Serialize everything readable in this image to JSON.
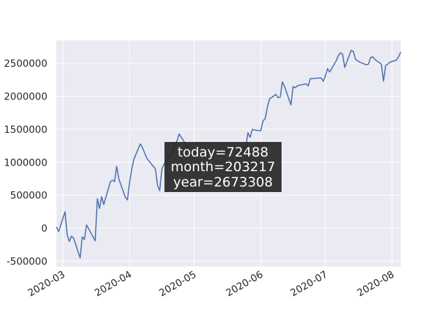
{
  "chart_data": {
    "type": "line",
    "title": "",
    "xlabel": "",
    "ylabel": "",
    "x_start": "2020-02-27",
    "x_range": [
      "2020-02-27",
      "2020-08-05"
    ],
    "ylim": [
      -580000,
      2850000
    ],
    "grid": true,
    "x_ticks": [
      "2020-03",
      "2020-04",
      "2020-05",
      "2020-06",
      "2020-07",
      "2020-08"
    ],
    "y_ticks": [
      -500000,
      0,
      500000,
      1000000,
      1500000,
      2000000,
      2500000
    ],
    "series": [
      {
        "color": "#4c72b0",
        "x": [
          "2020-02-27",
          "2020-02-28",
          "2020-03-02",
          "2020-03-03",
          "2020-03-04",
          "2020-03-05",
          "2020-03-06",
          "2020-03-09",
          "2020-03-10",
          "2020-03-11",
          "2020-03-12",
          "2020-03-16",
          "2020-03-17",
          "2020-03-18",
          "2020-03-19",
          "2020-03-20",
          "2020-03-23",
          "2020-03-24",
          "2020-03-25",
          "2020-03-26",
          "2020-03-27",
          "2020-03-30",
          "2020-03-31",
          "2020-04-01",
          "2020-04-02",
          "2020-04-03",
          "2020-04-06",
          "2020-04-07",
          "2020-04-08",
          "2020-04-09",
          "2020-04-10",
          "2020-04-13",
          "2020-04-14",
          "2020-04-15",
          "2020-04-16",
          "2020-04-17",
          "2020-04-20",
          "2020-04-21",
          "2020-04-22",
          "2020-04-23",
          "2020-04-24",
          "2020-04-27",
          "2020-04-28",
          "2020-04-29",
          "2020-04-30",
          "2020-05-25",
          "2020-05-26",
          "2020-05-27",
          "2020-05-28",
          "2020-05-29",
          "2020-06-01",
          "2020-06-02",
          "2020-06-03",
          "2020-06-04",
          "2020-06-05",
          "2020-06-08",
          "2020-06-09",
          "2020-06-10",
          "2020-06-11",
          "2020-06-12",
          "2020-06-15",
          "2020-06-16",
          "2020-06-17",
          "2020-06-18",
          "2020-06-19",
          "2020-06-22",
          "2020-06-23",
          "2020-06-24",
          "2020-06-29",
          "2020-06-30",
          "2020-07-01",
          "2020-07-02",
          "2020-07-03",
          "2020-07-06",
          "2020-07-07",
          "2020-07-08",
          "2020-07-09",
          "2020-07-10",
          "2020-07-13",
          "2020-07-14",
          "2020-07-15",
          "2020-07-16",
          "2020-07-17",
          "2020-07-20",
          "2020-07-21",
          "2020-07-22",
          "2020-07-23",
          "2020-07-24",
          "2020-07-27",
          "2020-07-28",
          "2020-07-29",
          "2020-07-30",
          "2020-07-31",
          "2020-08-03",
          "2020-08-04",
          "2020-08-05"
        ],
        "values": [
          20000,
          -50000,
          250000,
          -100000,
          -200000,
          -120000,
          -150000,
          -450000,
          -130000,
          -170000,
          50000,
          -190000,
          450000,
          300000,
          480000,
          360000,
          700000,
          730000,
          710000,
          940000,
          750000,
          470000,
          430000,
          700000,
          900000,
          1050000,
          1280000,
          1220000,
          1140000,
          1060000,
          1020000,
          900000,
          650000,
          570000,
          900000,
          970000,
          1120000,
          1150000,
          1280000,
          1320000,
          1430000,
          1280000,
          1200000,
          1150000,
          1100000,
          1230000,
          1450000,
          1380000,
          1500000,
          1490000,
          1480000,
          1630000,
          1660000,
          1830000,
          1960000,
          2030000,
          1980000,
          1990000,
          2220000,
          2150000,
          1870000,
          2150000,
          2130000,
          2160000,
          2170000,
          2190000,
          2160000,
          2270000,
          2280000,
          2230000,
          2310000,
          2420000,
          2370000,
          2540000,
          2620000,
          2660000,
          2640000,
          2440000,
          2700000,
          2680000,
          2560000,
          2540000,
          2520000,
          2480000,
          2490000,
          2590000,
          2600000,
          2560000,
          2490000,
          2230000,
          2470000,
          2490000,
          2520000,
          2550000,
          2600000,
          2673308
        ]
      }
    ],
    "tooltip": {
      "lines": [
        "today=72488",
        "month=203217",
        "year=2673308"
      ]
    }
  }
}
